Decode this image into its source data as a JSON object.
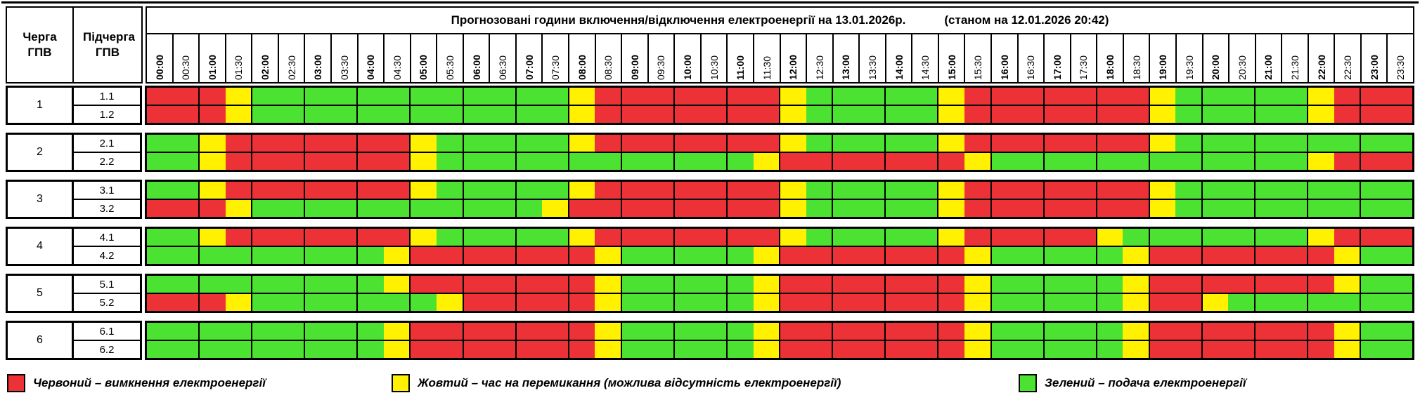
{
  "title": {
    "main": "Прогнозовані години включення/відключення електроенергії на 13.01.2026р.",
    "status": "(станом на 12.01.2026 20:42)"
  },
  "columns": {
    "queue_header": "Черга ГПВ",
    "subqueue_header": "Підчерга ГПВ"
  },
  "colors": {
    "red": "#ED3237",
    "yellow": "#FFF100",
    "green": "#4CE231",
    "border": "#000000"
  },
  "legend": [
    {
      "key": "R",
      "label": "Червоний – вимкнення електроенергії"
    },
    {
      "key": "Y",
      "label": "Жовтий – час на перемикання (можлива відсутність електроенергії)"
    },
    {
      "key": "G",
      "label": "Зелений – подача електроенергії"
    }
  ],
  "chart_data": {
    "type": "heatmap",
    "x_labels": [
      "00:00",
      "00:30",
      "01:00",
      "01:30",
      "02:00",
      "02:30",
      "03:00",
      "03:30",
      "04:00",
      "04:30",
      "05:00",
      "05:30",
      "06:00",
      "06:30",
      "07:00",
      "07:30",
      "08:00",
      "08:30",
      "09:00",
      "09:30",
      "10:00",
      "10:30",
      "11:00",
      "11:30",
      "12:00",
      "12:30",
      "13:00",
      "13:30",
      "14:00",
      "14:30",
      "15:00",
      "15:30",
      "16:00",
      "16:30",
      "17:00",
      "17:30",
      "18:00",
      "18:30",
      "19:00",
      "19:30",
      "20:00",
      "20:30",
      "21:00",
      "21:30",
      "22:00",
      "22:30",
      "23:00",
      "23:30"
    ],
    "cell_meaning": {
      "R": "вимкнення електроенергії",
      "Y": "час на перемикання (можлива відсутність електроенергії)",
      "G": "подача електроенергії"
    },
    "groups": [
      {
        "queue": "1",
        "rows": [
          {
            "label": "1.1",
            "pattern": "RRRYGGGGGGGGGGGGYRRRRRRRYGGGGGYRRRRRRRYGGGGGYRRR"
          },
          {
            "label": "1.2",
            "pattern": "RRRYGGGGGGGGGGGGYRRRRRRRYGGGGGYRRRRRRRYGGGGGYRRR"
          }
        ]
      },
      {
        "queue": "2",
        "rows": [
          {
            "label": "2.1",
            "pattern": "GGYRRRRRRRYGGGGGYRRRRRRRYGGGGGYRRRRRRRYGGGGGGGGG"
          },
          {
            "label": "2.2",
            "pattern": "GGYRRRRRRRYGGGGGGGGGGGGYRRRRRRRYGGGGGGGGGGGGYRRR"
          }
        ]
      },
      {
        "queue": "3",
        "rows": [
          {
            "label": "3.1",
            "pattern": "GGYRRRRRRRYGGGGGYRRRRRRRYGGGGGYRRRRRRRYGGGGGGGGG"
          },
          {
            "label": "3.2",
            "pattern": "RRRYGGGGGGGGGGGYRRRRRRRRYGGGGGYRRRRRRRYGGGGGGGGG"
          }
        ]
      },
      {
        "queue": "4",
        "rows": [
          {
            "label": "4.1",
            "pattern": "GGYRRRRRRRYGGGGGYRRRRRRRYGGGGGYRRRRRYGGGGGGGYRRR"
          },
          {
            "label": "4.2",
            "pattern": "GGGGGGGGGYRRRRRRRYGGGGGYRRRRRRRYGGGGGYRRRRRRRYGG"
          }
        ]
      },
      {
        "queue": "5",
        "rows": [
          {
            "label": "5.1",
            "pattern": "GGGGGGGGGYRRRRRRRYGGGGGYRRRRRRRYGGGGGYRRRRRRRYGG"
          },
          {
            "label": "5.2",
            "pattern": "RRRYGGGGGGGYRRRRRYGGGGGYRRRRRRRYGGGGGYRRYGGGGGGG"
          }
        ]
      },
      {
        "queue": "6",
        "rows": [
          {
            "label": "6.1",
            "pattern": "GGGGGGGGGYRRRRRRRYGGGGGYRRRRRRRYGGGGGYRRRRRRRYGG"
          },
          {
            "label": "6.2",
            "pattern": "GGGGGGGGGYRRRRRRRYGGGGGYRRRRRRRYGGGGGYRRRRRRRYGG"
          }
        ]
      }
    ]
  }
}
